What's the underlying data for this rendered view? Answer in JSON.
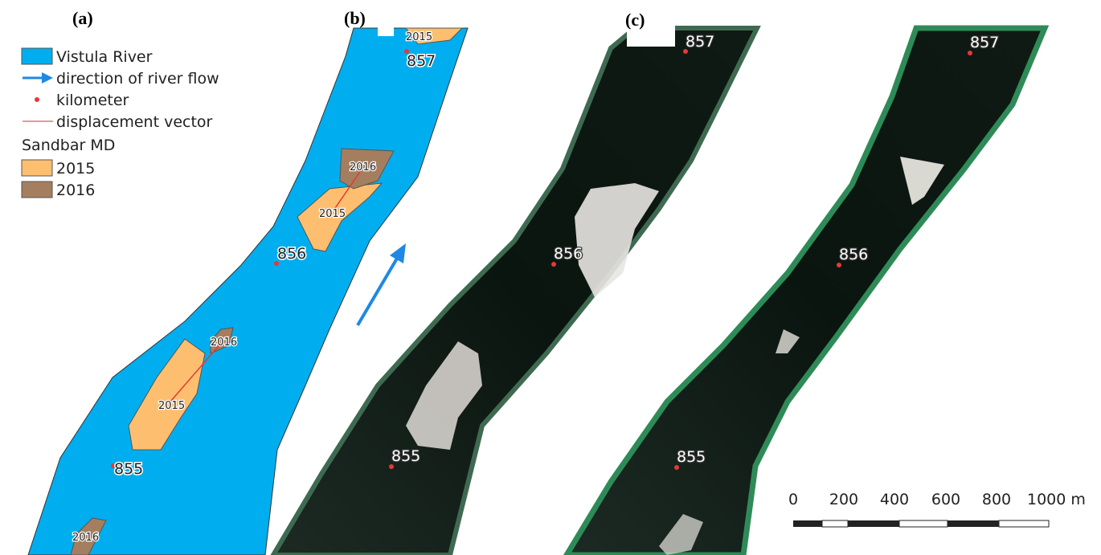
{
  "panels": {
    "a": "(a)",
    "b": "(b)",
    "c": "(c)"
  },
  "legend": {
    "items": [
      "Vistula River",
      "direction of river flow",
      "kilometer",
      "displacement vector"
    ],
    "group_title": "Sandbar MD",
    "group_items": [
      "2015",
      "2016"
    ]
  },
  "panel_a": {
    "kilometers": [
      "857",
      "856",
      "855"
    ],
    "sandbars": [
      "2015",
      "2016",
      "2015",
      "2016",
      "2015",
      "2016"
    ]
  },
  "panel_b": {
    "kilometers": [
      "857",
      "856",
      "855"
    ]
  },
  "panel_c": {
    "kilometers": [
      "857",
      "856",
      "855"
    ]
  },
  "scale_bar": {
    "ticks": [
      "0",
      "200",
      "400",
      "600",
      "800",
      "1000 m"
    ]
  }
}
